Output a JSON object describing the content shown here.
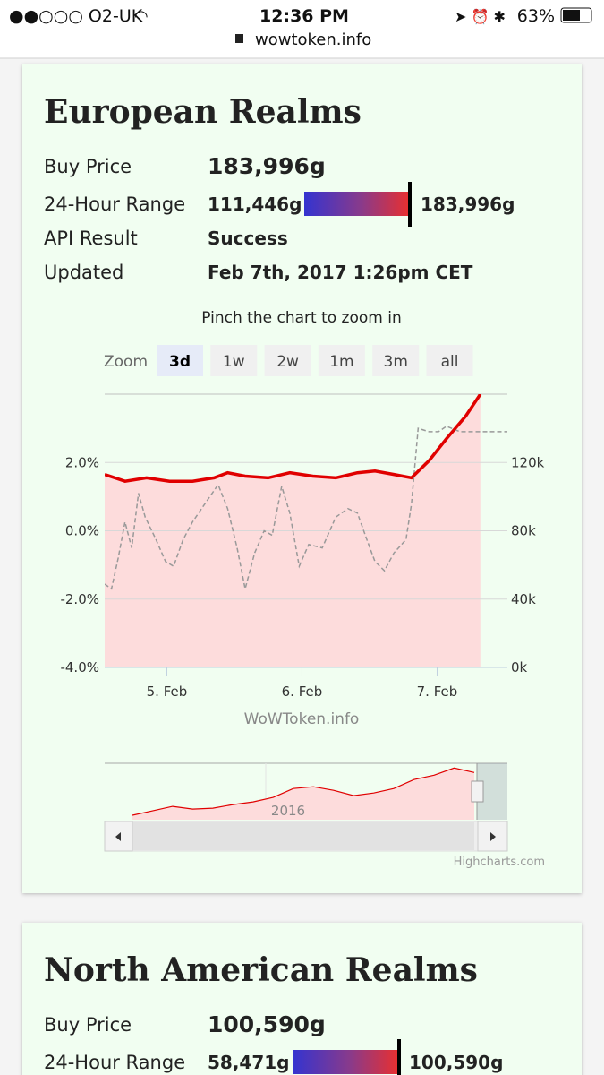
{
  "status_bar": {
    "carrier": "●●○○○ O2-UK",
    "time": "12:36 PM",
    "battery": "63%",
    "url": "wowtoken.info"
  },
  "realms": [
    {
      "title": "European Realms",
      "buy_price_label": "Buy Price",
      "buy_price": "183,996g",
      "range_label": "24-Hour Range",
      "range_low": "111,446g",
      "range_high": "183,996g",
      "api_label": "API Result",
      "api_result": "Success",
      "updated_label": "Updated",
      "updated": "Feb 7th, 2017 1:26pm CET"
    },
    {
      "title": "North American Realms",
      "buy_price_label": "Buy Price",
      "buy_price": "100,590g",
      "range_label": "24-Hour Range",
      "range_low": "58,471g",
      "range_high": "100,590g"
    }
  ],
  "zoom": {
    "hint": "Pinch the chart to zoom in",
    "label": "Zoom",
    "options": [
      "3d",
      "1w",
      "2w",
      "1m",
      "3m",
      "all"
    ],
    "active": 0
  },
  "chart_data": {
    "type": "line",
    "xlim": [
      4.54,
      7.52
    ],
    "xticks": [
      {
        "value": 5,
        "label": "5. Feb"
      },
      {
        "value": 6,
        "label": "6. Feb"
      },
      {
        "value": 7,
        "label": "7. Feb"
      }
    ],
    "ylim": [
      -4,
      4
    ],
    "yticks": [
      {
        "value": 2,
        "label": "2.0%"
      },
      {
        "value": 0,
        "label": "0.0%"
      },
      {
        "value": -2,
        "label": "-2.0%"
      },
      {
        "value": -4,
        "label": "-4.0%"
      }
    ],
    "y2lim": [
      0,
      160000
    ],
    "y2ticks": [
      {
        "value": 0,
        "label": "0k"
      },
      {
        "value": 40000,
        "label": "40k"
      },
      {
        "value": 80000,
        "label": "80k"
      },
      {
        "value": 120000,
        "label": "120k"
      }
    ],
    "grid": true,
    "series": [
      {
        "color": "#e00000",
        "axis": "y2",
        "area": true,
        "area_color": "#fddcdc",
        "x": [
          4.54,
          4.69,
          4.85,
          5.02,
          5.19,
          5.35,
          5.45,
          5.58,
          5.75,
          5.91,
          6.08,
          6.25,
          6.41,
          6.54,
          6.68,
          6.81,
          6.94,
          7.07,
          7.21,
          7.32
        ],
        "values": [
          113000,
          109000,
          111000,
          109000,
          109000,
          111000,
          114000,
          112000,
          111000,
          114000,
          112000,
          111000,
          114000,
          115000,
          113000,
          111000,
          121000,
          134000,
          147000,
          160000
        ]
      },
      {
        "color": "#999999",
        "dashed": true,
        "x": [
          4.54,
          4.59,
          4.64,
          4.69,
          4.74,
          4.79,
          4.84,
          4.92,
          4.99,
          5.05,
          5.12,
          5.19,
          5.28,
          5.38,
          5.45,
          5.52,
          5.58,
          5.65,
          5.72,
          5.78,
          5.85,
          5.91,
          5.98,
          6.05,
          6.15,
          6.25,
          6.34,
          6.41,
          6.48,
          6.54,
          6.61,
          6.68,
          6.77,
          6.81,
          6.86,
          6.94,
          7.01,
          7.07,
          7.17,
          7.34,
          7.52
        ],
        "values": [
          -1.56,
          -1.7,
          -0.8,
          0.26,
          -0.5,
          1.1,
          0.4,
          -0.26,
          -0.9,
          -1.04,
          -0.26,
          0.26,
          0.78,
          1.35,
          0.65,
          -0.5,
          -1.7,
          -0.65,
          0,
          -0.13,
          1.3,
          0.52,
          -1.04,
          -0.4,
          -0.5,
          0.4,
          0.65,
          0.52,
          -0.26,
          -0.9,
          -1.17,
          -0.65,
          -0.26,
          0.78,
          3.0,
          2.9,
          2.9,
          3.06,
          2.9,
          2.9,
          2.9
        ]
      }
    ],
    "credits": "WoWToken.info",
    "navigator": {
      "label": "2016",
      "color": "#e00000",
      "ylim": [
        0,
        190000
      ],
      "values": [
        15000,
        30000,
        45000,
        36000,
        39000,
        51000,
        60000,
        75000,
        105000,
        111000,
        99000,
        81000,
        90000,
        105000,
        135000,
        150000,
        174000,
        159000
      ]
    },
    "library_credit": "Highcharts.com"
  }
}
